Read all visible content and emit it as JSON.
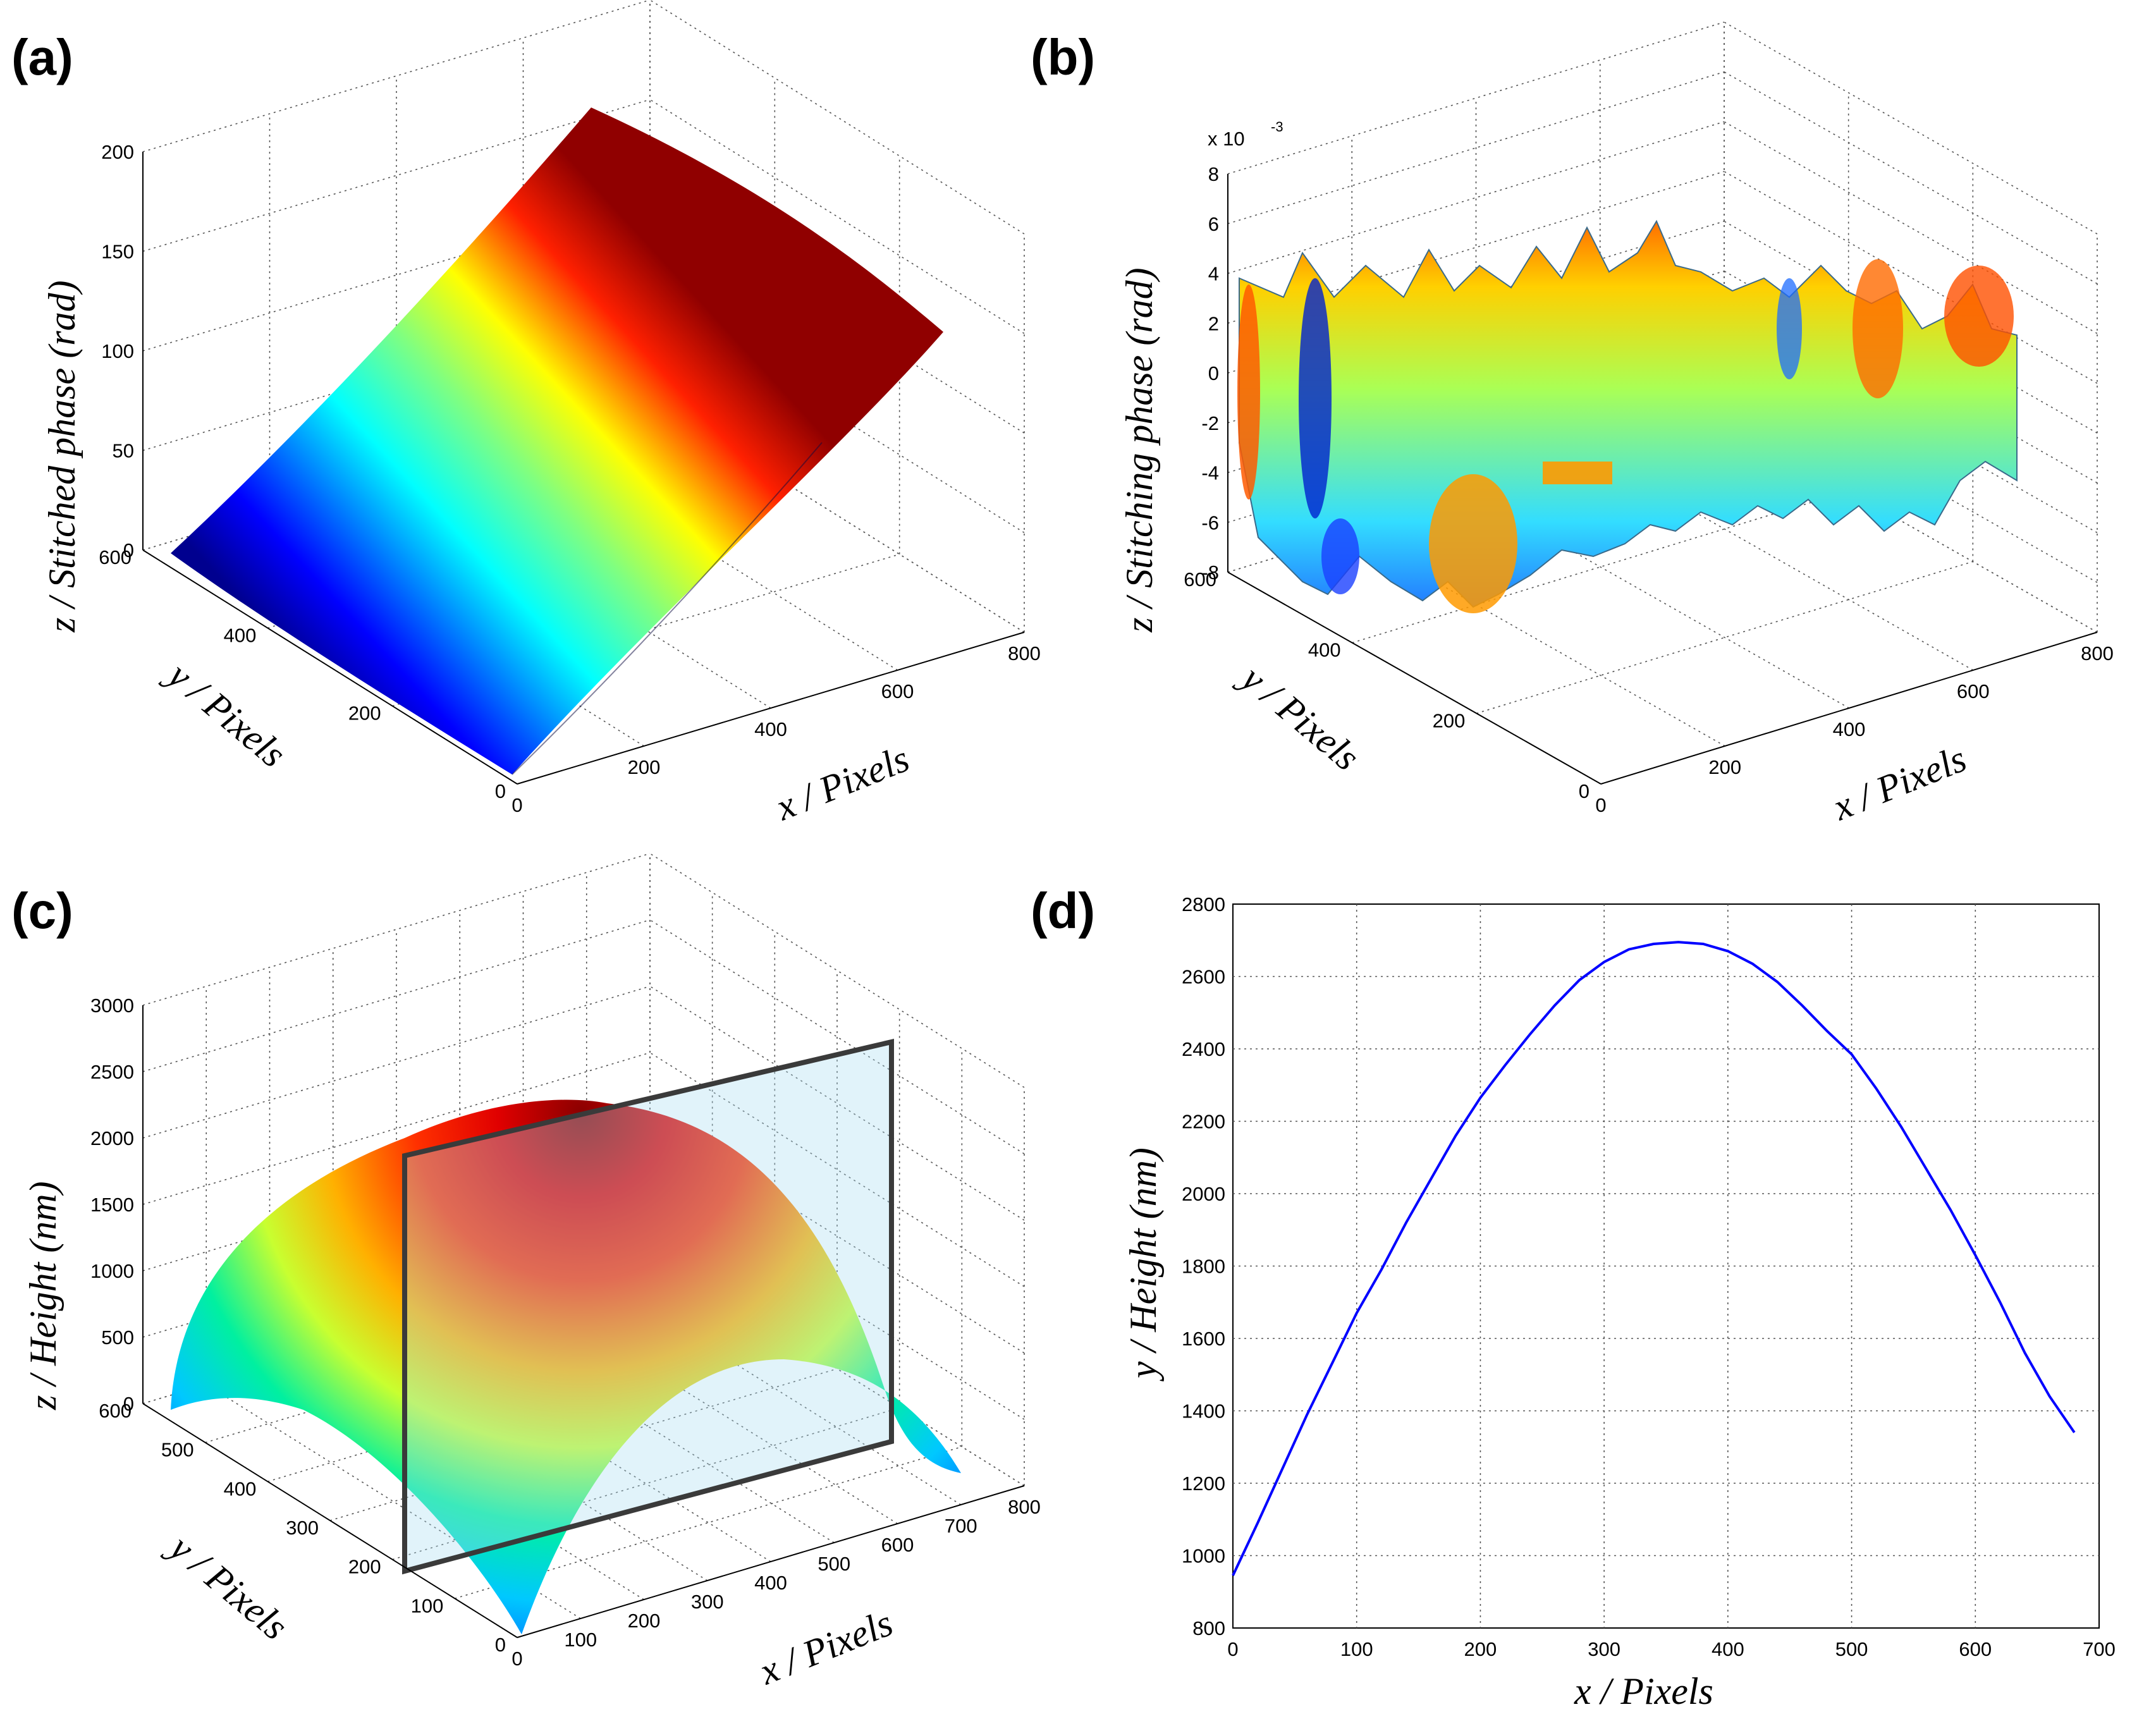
{
  "chart_data": [
    {
      "panel": "(a)",
      "type": "surface",
      "xlabel": "x / Pixels",
      "ylabel": "y / Pixels",
      "zlabel": "z / Stitched phase (rad)",
      "xticks": [
        0,
        200,
        400,
        600,
        800
      ],
      "yticks": [
        0,
        200,
        400,
        600
      ],
      "zticks": [
        0,
        50,
        100,
        150,
        200
      ],
      "xlim": [
        0,
        800
      ],
      "ylim": [
        0,
        600
      ],
      "zlim": [
        0,
        200
      ],
      "colormap": "jet",
      "surface_range": {
        "x": [
          0,
          680
        ],
        "y": [
          0,
          560
        ],
        "z": [
          0,
          215
        ]
      }
    },
    {
      "panel": "(b)",
      "type": "surface",
      "xlabel": "x / Pixels",
      "ylabel": "y / Pixels",
      "zlabel": "z / Stitching phase (rad)",
      "scale_label": "x 10",
      "scale_exponent": "-3",
      "xticks": [
        0,
        200,
        400,
        600,
        800
      ],
      "yticks": [
        0,
        200,
        400,
        600
      ],
      "zticks": [
        -8,
        -6,
        -4,
        -2,
        0,
        2,
        4,
        6,
        8
      ],
      "xlim": [
        0,
        800
      ],
      "ylim": [
        0,
        600
      ],
      "zlim": [
        -8,
        8
      ],
      "colormap": "jet",
      "surface_range": {
        "x": [
          0,
          680
        ],
        "y": [
          0,
          560
        ],
        "z": [
          -8,
          6.5
        ]
      }
    },
    {
      "panel": "(c)",
      "type": "surface",
      "xlabel": "x / Pixels",
      "ylabel": "y / Pixels",
      "zlabel": "z / Height (nm)",
      "xticks": [
        0,
        100,
        200,
        300,
        400,
        500,
        600,
        700,
        800
      ],
      "yticks": [
        0,
        100,
        200,
        300,
        400,
        500,
        600
      ],
      "zticks": [
        0,
        500,
        1000,
        1500,
        2000,
        2500,
        3000
      ],
      "xlim": [
        0,
        800
      ],
      "ylim": [
        0,
        600
      ],
      "zlim": [
        0,
        3000
      ],
      "colormap": "jet",
      "surface_range": {
        "x": [
          0,
          680
        ],
        "y": [
          0,
          560
        ],
        "z": [
          0,
          2700
        ]
      },
      "section_plane": {
        "y": 280,
        "x": [
          0,
          680
        ],
        "z": [
          0,
          3000
        ]
      }
    },
    {
      "panel": "(d)",
      "type": "line",
      "xlabel": "x / Pixels",
      "ylabel": "y / Height (nm)",
      "xticks": [
        0,
        100,
        200,
        300,
        400,
        500,
        600,
        700
      ],
      "yticks": [
        800,
        1000,
        1200,
        1400,
        1600,
        1800,
        2000,
        2200,
        2400,
        2600,
        2800
      ],
      "xlim": [
        0,
        700
      ],
      "ylim": [
        800,
        2800
      ],
      "grid": true,
      "series": [
        {
          "color": "#0000ff",
          "x": [
            0,
            20,
            40,
            60,
            80,
            100,
            120,
            140,
            160,
            180,
            200,
            220,
            240,
            260,
            280,
            300,
            320,
            340,
            360,
            380,
            400,
            420,
            440,
            460,
            480,
            500,
            520,
            540,
            560,
            580,
            600,
            620,
            640,
            660,
            680
          ],
          "values": [
            945,
            1090,
            1240,
            1390,
            1530,
            1670,
            1790,
            1920,
            2040,
            2160,
            2265,
            2355,
            2440,
            2520,
            2590,
            2640,
            2675,
            2690,
            2695,
            2690,
            2670,
            2635,
            2585,
            2520,
            2450,
            2385,
            2290,
            2185,
            2070,
            1955,
            1830,
            1700,
            1560,
            1440,
            1340
          ]
        }
      ]
    }
  ]
}
